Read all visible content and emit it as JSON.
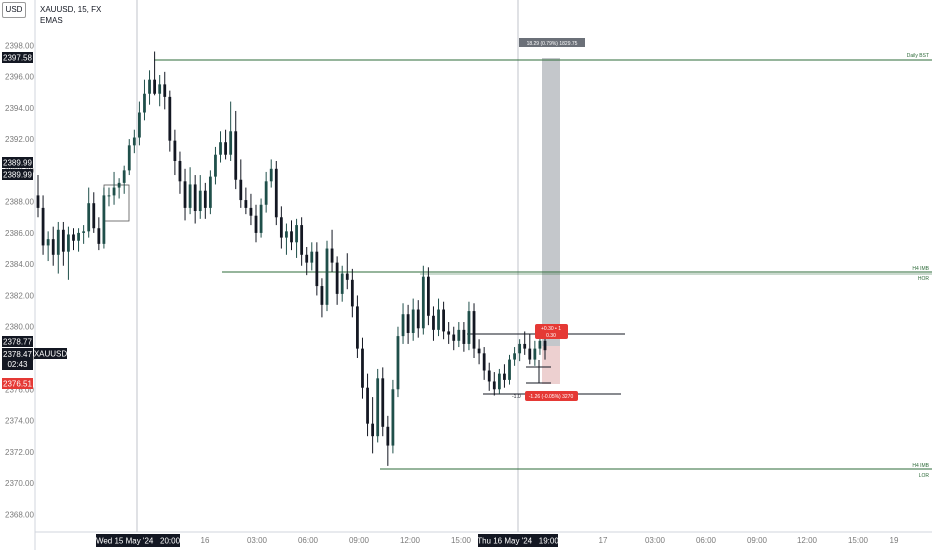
{
  "header": {
    "currency_button": "USD",
    "symbol_title": "XAUUSD, 15, FX",
    "indicator_label": "EMAS"
  },
  "price_labels": {
    "top_level": "2397.58",
    "level_a": "2389.99",
    "level_b": "2389.99",
    "current_high": "2378.77",
    "current_price": "2378.47",
    "symbol_tag": "XAUUSD",
    "countdown": "02:43",
    "stop_price": "2376.51"
  },
  "annotations": {
    "daily_level": "Daily BST",
    "h4_hob": "H4 IMB",
    "hor": "HOR",
    "h4_lob": "H4 IMB",
    "lor": "LOR",
    "range_measure": "18.29 (0.79%) 1829.75",
    "target_box_line1": "+0.30 • 1",
    "target_box_line2": "0.30",
    "stop_box": "-1.26 (-0.05%) 3270",
    "stop_left_text": "-1.0"
  },
  "crosshair_labels": {
    "date_left": "Wed 15 May '24   20:00",
    "date_right": "Thu 16 May '24   19:00"
  },
  "colors": {
    "up": "#26a69a",
    "down": "#131722",
    "candle_body_up": "#1f4f4a",
    "level_line": "#2e6b3a",
    "stop_red": "#e53935",
    "projection_gray": "#9e9e9e",
    "label_dark": "#131722"
  },
  "chart_data": {
    "type": "candlestick",
    "symbol": "XAUUSD",
    "timeframe": "15",
    "ylim": [
      2367,
      2400
    ],
    "y_ticks": [
      "2398.00",
      "2396.00",
      "2394.00",
      "2392.00",
      "2390.00",
      "2388.00",
      "2386.00",
      "2384.00",
      "2382.00",
      "2380.00",
      "2378.00",
      "2376.00",
      "2374.00",
      "2372.00",
      "2370.00",
      "2368.00"
    ],
    "x_ticks": [
      "16",
      "03:00",
      "06:00",
      "09:00",
      "12:00",
      "15:00",
      "17",
      "03:00",
      "06:00",
      "09:00",
      "12:00",
      "15:00",
      "19"
    ],
    "horizontal_levels": [
      {
        "name": "Daily BST",
        "price": 2397.6
      },
      {
        "name": "H4 IMB",
        "price": 2383.7
      },
      {
        "name": "H4 IMB",
        "price": 2370.9
      }
    ],
    "candles": [
      [
        2388.4,
        2389.7,
        2387.0,
        2387.6
      ],
      [
        2387.6,
        2388.4,
        2384.6,
        2385.2
      ],
      [
        2385.2,
        2386.1,
        2384.2,
        2385.6
      ],
      [
        2385.6,
        2386.4,
        2383.9,
        2384.6
      ],
      [
        2384.6,
        2386.7,
        2383.4,
        2386.2
      ],
      [
        2386.2,
        2386.7,
        2383.9,
        2384.8
      ],
      [
        2384.8,
        2386.4,
        2383.0,
        2385.9
      ],
      [
        2385.9,
        2386.3,
        2384.9,
        2385.5
      ],
      [
        2385.5,
        2386.3,
        2384.8,
        2386.0
      ],
      [
        2386.0,
        2386.5,
        2385.3,
        2386.1
      ],
      [
        2386.1,
        2388.9,
        2385.7,
        2387.9
      ],
      [
        2387.9,
        2388.6,
        2386.0,
        2386.3
      ],
      [
        2386.3,
        2387.0,
        2384.9,
        2385.3
      ],
      [
        2385.3,
        2388.9,
        2385.0,
        2388.4
      ],
      [
        2388.4,
        2388.9,
        2387.7,
        2388.4
      ],
      [
        2388.4,
        2389.9,
        2387.8,
        2388.9
      ],
      [
        2388.9,
        2389.5,
        2388.2,
        2389.2
      ],
      [
        2389.2,
        2390.3,
        2388.5,
        2390.0
      ],
      [
        2390.0,
        2392.0,
        2389.7,
        2391.6
      ],
      [
        2391.6,
        2392.6,
        2391.1,
        2392.1
      ],
      [
        2392.1,
        2394.4,
        2391.6,
        2393.7
      ],
      [
        2393.7,
        2395.8,
        2393.2,
        2394.9
      ],
      [
        2394.9,
        2396.4,
        2394.2,
        2395.8
      ],
      [
        2395.8,
        2397.6,
        2394.8,
        2394.9
      ],
      [
        2394.9,
        2396.1,
        2394.1,
        2395.5
      ],
      [
        2395.5,
        2396.3,
        2393.9,
        2394.7
      ],
      [
        2394.7,
        2395.1,
        2391.2,
        2391.9
      ],
      [
        2391.9,
        2392.6,
        2389.7,
        2390.6
      ],
      [
        2390.6,
        2391.2,
        2388.5,
        2389.3
      ],
      [
        2389.3,
        2390.1,
        2386.8,
        2387.6
      ],
      [
        2387.6,
        2390.2,
        2387.2,
        2389.1
      ],
      [
        2389.1,
        2389.7,
        2386.6,
        2387.4
      ],
      [
        2387.4,
        2389.7,
        2386.9,
        2388.7
      ],
      [
        2388.7,
        2389.2,
        2386.9,
        2387.6
      ],
      [
        2387.6,
        2390.0,
        2387.2,
        2389.6
      ],
      [
        2389.6,
        2391.5,
        2389.1,
        2391.0
      ],
      [
        2391.0,
        2392.5,
        2390.5,
        2391.8
      ],
      [
        2391.8,
        2392.6,
        2390.7,
        2391.0
      ],
      [
        2391.0,
        2394.4,
        2390.6,
        2392.5
      ],
      [
        2392.5,
        2393.8,
        2388.8,
        2389.4
      ],
      [
        2389.4,
        2390.7,
        2387.6,
        2388.1
      ],
      [
        2388.1,
        2388.9,
        2387.2,
        2387.6
      ],
      [
        2387.6,
        2388.5,
        2386.5,
        2387.1
      ],
      [
        2387.1,
        2387.8,
        2385.4,
        2386.0
      ],
      [
        2386.0,
        2388.2,
        2385.7,
        2387.8
      ],
      [
        2387.8,
        2389.9,
        2387.3,
        2389.3
      ],
      [
        2389.3,
        2390.7,
        2388.9,
        2390.1
      ],
      [
        2390.1,
        2390.6,
        2386.5,
        2387.0
      ],
      [
        2387.0,
        2387.7,
        2385.0,
        2385.7
      ],
      [
        2385.7,
        2386.6,
        2384.6,
        2386.1
      ],
      [
        2386.1,
        2386.8,
        2384.9,
        2385.4
      ],
      [
        2385.4,
        2386.9,
        2384.4,
        2386.5
      ],
      [
        2386.5,
        2387.0,
        2383.9,
        2384.6
      ],
      [
        2384.6,
        2385.1,
        2383.3,
        2384.1
      ],
      [
        2384.1,
        2385.4,
        2383.6,
        2384.8
      ],
      [
        2384.8,
        2385.4,
        2382.0,
        2382.6
      ],
      [
        2382.6,
        2383.1,
        2380.6,
        2381.4
      ],
      [
        2381.4,
        2385.5,
        2381.0,
        2385.0
      ],
      [
        2385.0,
        2386.2,
        2383.5,
        2384.1
      ],
      [
        2384.1,
        2384.5,
        2381.4,
        2382.1
      ],
      [
        2382.1,
        2383.9,
        2381.6,
        2383.4
      ],
      [
        2383.4,
        2384.7,
        2382.4,
        2383.0
      ],
      [
        2383.0,
        2383.7,
        2380.6,
        2381.3
      ],
      [
        2381.3,
        2382.0,
        2378.0,
        2378.6
      ],
      [
        2378.6,
        2379.3,
        2375.4,
        2376.1
      ],
      [
        2376.1,
        2377.0,
        2373.0,
        2373.8
      ],
      [
        2373.8,
        2375.5,
        2371.9,
        2373.0
      ],
      [
        2373.0,
        2377.3,
        2372.6,
        2376.7
      ],
      [
        2376.7,
        2377.4,
        2373.0,
        2373.6
      ],
      [
        2373.6,
        2374.3,
        2371.1,
        2372.4
      ],
      [
        2372.4,
        2376.6,
        2371.9,
        2376.0
      ],
      [
        2376.0,
        2380.0,
        2375.5,
        2379.4
      ],
      [
        2379.4,
        2381.5,
        2378.9,
        2380.8
      ],
      [
        2380.8,
        2381.4,
        2378.9,
        2379.6
      ],
      [
        2379.6,
        2381.8,
        2379.1,
        2381.1
      ],
      [
        2381.1,
        2381.7,
        2379.3,
        2379.9
      ],
      [
        2379.9,
        2383.9,
        2379.5,
        2383.2
      ],
      [
        2383.2,
        2383.8,
        2380.1,
        2380.7
      ],
      [
        2380.7,
        2381.3,
        2379.1,
        2379.8
      ],
      [
        2379.8,
        2381.8,
        2379.4,
        2381.1
      ],
      [
        2381.1,
        2381.6,
        2379.2,
        2379.7
      ],
      [
        2379.7,
        2380.3,
        2378.9,
        2379.5
      ],
      [
        2379.5,
        2380.0,
        2378.5,
        2379.1
      ],
      [
        2379.1,
        2380.3,
        2378.7,
        2379.8
      ],
      [
        2379.8,
        2380.3,
        2378.4,
        2378.9
      ],
      [
        2378.9,
        2381.6,
        2378.5,
        2381.0
      ],
      [
        2381.0,
        2381.5,
        2378.0,
        2378.6
      ],
      [
        2378.6,
        2379.2,
        2377.6,
        2378.3
      ],
      [
        2378.3,
        2378.7,
        2376.6,
        2377.2
      ],
      [
        2377.2,
        2377.7,
        2375.9,
        2376.5
      ],
      [
        2376.5,
        2377.1,
        2375.6,
        2376.0
      ],
      [
        2376.0,
        2377.3,
        2375.7,
        2377.0
      ],
      [
        2377.0,
        2377.6,
        2376.1,
        2376.6
      ],
      [
        2376.6,
        2378.2,
        2376.3,
        2377.9
      ],
      [
        2377.9,
        2378.7,
        2377.5,
        2378.3
      ],
      [
        2378.3,
        2379.2,
        2377.8,
        2378.9
      ],
      [
        2378.9,
        2379.7,
        2378.2,
        2378.6
      ],
      [
        2378.6,
        2379.5,
        2377.6,
        2377.9
      ],
      [
        2377.9,
        2379.1,
        2377.5,
        2378.6
      ],
      [
        2378.6,
        2379.6,
        2378.2,
        2379.1
      ],
      [
        2379.1,
        2379.4,
        2377.9,
        2378.5
      ]
    ],
    "position_tool": {
      "entry": 2378.77,
      "target": 2397.58,
      "stop": 2376.51
    }
  }
}
